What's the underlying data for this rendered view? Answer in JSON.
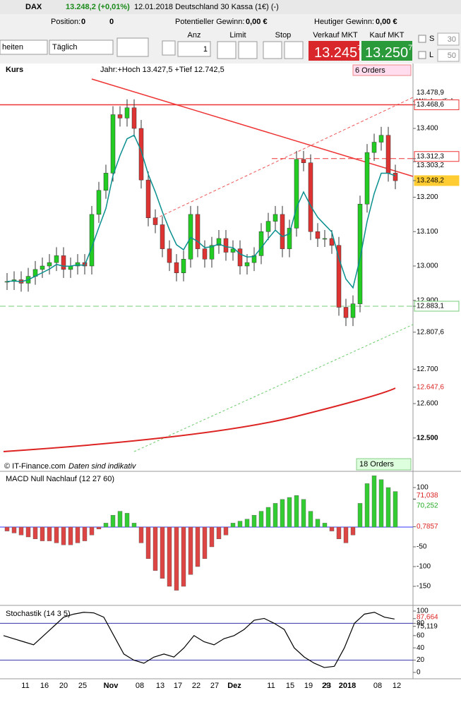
{
  "header": {
    "symbol": "DAX",
    "quote": "13.248,2 (+0,01%)",
    "info": "12.01.2018 Deutschland 30 Kassa (1€) (-)"
  },
  "position_bar": {
    "position_label": "Position:",
    "position": "0",
    "orders": "0",
    "potential_label": "Potentieller Gewinn:",
    "potential": "0,00 €",
    "today_label": "Heutiger Gewinn:",
    "today": "0,00 €"
  },
  "order_bar": {
    "units": "heiten",
    "period": "Täglich",
    "qty_label": "Anz",
    "qty": "1",
    "limit_label": "Limit",
    "stop_label": "Stop",
    "sell_label": "Verkauf MKT",
    "sell_main": "13.245",
    "sell_frac": "7",
    "buy_label": "Kauf MKT",
    "buy_main": "13.250",
    "buy_frac": "7",
    "s_label": "S",
    "s_value": "30",
    "l_label": "L",
    "l_value": "50"
  },
  "price_chart": {
    "title": "Kurs",
    "range_info": "Jahr:+Hoch 13.427,5 +Tief 12.742,5",
    "orders_top": "6 Orders",
    "orders_bottom": "18 Orders",
    "copyright": "© IT-Finance.com",
    "note": "Daten sind indikativ",
    "weekly": "Wöchentlich",
    "closes": [
      12955,
      12960,
      12950,
      12970,
      12990,
      13000,
      13010,
      13030,
      12990,
      13000,
      13010,
      13000,
      13150,
      13220,
      13270,
      13440,
      13430,
      13460,
      13400,
      13250,
      13140,
      13120,
      13050,
      13010,
      12980,
      13020,
      13150,
      13050,
      13020,
      13060,
      13080,
      13040,
      13050,
      13000,
      13010,
      13030,
      13100,
      13130,
      13150,
      13050,
      13110,
      13310,
      13300,
      13100,
      13080,
      13080,
      13060,
      12880,
      12850,
      12890,
      13180,
      13330,
      13360,
      13380,
      13270,
      13248
    ],
    "labels": [
      {
        "value": 13478.9,
        "label": "13.478,9"
      },
      {
        "value": 13468.6,
        "label": "13.468,6"
      },
      {
        "value": 13400,
        "label": "13.400"
      },
      {
        "value": 13312.3,
        "label": "13.312,3"
      },
      {
        "value": 13303.2,
        "label": "13.303,2"
      },
      {
        "value": 13248.2,
        "label": "13.248,2"
      },
      {
        "value": 13200,
        "label": "13.200"
      },
      {
        "value": 13100,
        "label": "13.100"
      },
      {
        "value": 13000,
        "label": "13.000"
      },
      {
        "value": 12900,
        "label": "12.900"
      },
      {
        "value": 12883.1,
        "label": "12.883,1"
      },
      {
        "value": 12807.6,
        "label": "12.807,6"
      },
      {
        "value": 12700,
        "label": "12.700"
      },
      {
        "value": 12647.6,
        "label": "12.647,6"
      },
      {
        "value": 12600,
        "label": "12.600"
      },
      {
        "value": 12500,
        "label": "12.500"
      }
    ]
  },
  "macd": {
    "title": "MACD Null Nachlauf (12 27 60)",
    "histogram": [
      -10,
      -15,
      -20,
      -25,
      -30,
      -35,
      -35,
      -40,
      -45,
      -45,
      -40,
      -35,
      -20,
      -5,
      10,
      30,
      40,
      35,
      10,
      -40,
      -80,
      -110,
      -130,
      -150,
      -160,
      -150,
      -120,
      -100,
      -80,
      -50,
      -30,
      -20,
      10,
      15,
      20,
      30,
      40,
      50,
      60,
      70,
      75,
      80,
      70,
      40,
      20,
      10,
      -10,
      -30,
      -40,
      -20,
      60,
      110,
      130,
      120,
      100,
      90
    ],
    "labels": [
      {
        "value": 100,
        "label": "100"
      },
      {
        "value": 71.038,
        "label": "71,038"
      },
      {
        "value": 70.252,
        "label": "70,252"
      },
      {
        "value": 0.7857,
        "label": "0,7857"
      },
      {
        "value": -50,
        "label": "-50"
      },
      {
        "value": -100,
        "label": "-100"
      },
      {
        "value": -150,
        "label": "-150"
      }
    ]
  },
  "stochastic": {
    "title": "Stochastik (14 3 5)",
    "k": [
      60,
      55,
      50,
      45,
      60,
      75,
      90,
      95,
      98,
      97,
      90,
      60,
      30,
      20,
      15,
      25,
      30,
      25,
      40,
      60,
      50,
      45,
      55,
      60,
      70,
      85,
      88,
      80,
      70,
      40,
      25,
      15,
      8,
      10,
      40,
      80,
      95,
      98,
      90,
      87
    ],
    "labels": [
      {
        "value": 100,
        "label": "100"
      },
      {
        "value": 87.664,
        "label": "87,664"
      },
      {
        "value": 80,
        "label": "80"
      },
      {
        "value": 75.119,
        "label": "75,119"
      },
      {
        "value": 60,
        "label": "60"
      },
      {
        "value": 40,
        "label": "40"
      },
      {
        "value": 20,
        "label": "20"
      },
      {
        "value": 0,
        "label": "0"
      }
    ]
  },
  "x_axis": [
    "11",
    "16",
    "20",
    "25",
    "Nov",
    "08",
    "13",
    "17",
    "22",
    "27",
    "Dez",
    "11",
    "15",
    "19",
    "23",
    "29",
    "2018",
    "08",
    "12"
  ]
}
